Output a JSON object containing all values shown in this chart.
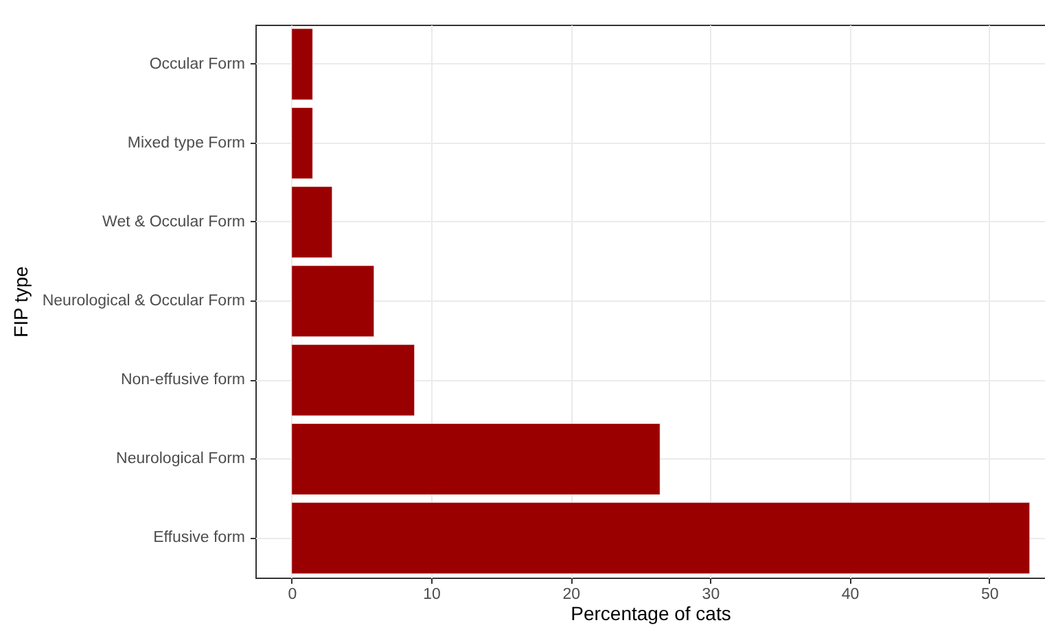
{
  "chart_data": {
    "type": "bar",
    "orientation": "horizontal",
    "xlabel": "Percentage of cats",
    "ylabel": "FIP type",
    "categories": [
      "Occular Form",
      "Mixed type Form",
      "Wet & Occular Form",
      "Neurological & Occular Form",
      "Non-effusive form",
      "Neurological Form",
      "Effusive form"
    ],
    "values": [
      1.5,
      1.5,
      2.9,
      5.9,
      8.8,
      26.4,
      52.9
    ],
    "color": "#9b0000",
    "xlim": [
      -2.6,
      54
    ],
    "xticks": [
      0,
      10,
      20,
      30,
      40,
      50
    ],
    "grid": true
  }
}
